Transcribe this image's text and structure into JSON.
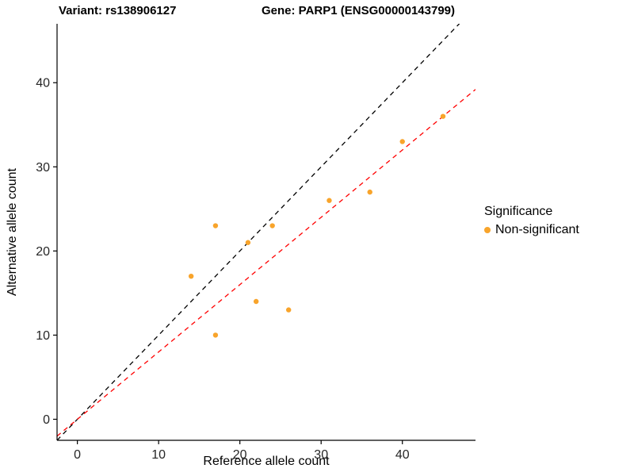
{
  "header": {
    "title_left": "Variant: rs138906127",
    "title_right": "Gene: PARP1 (ENSG00000143799)"
  },
  "legend": {
    "title": "Significance",
    "items": [
      {
        "label": "Non-significant",
        "color": "#F8A42B"
      }
    ]
  },
  "chart_data": {
    "type": "scatter",
    "title": "Variant: rs138906127 / Gene: PARP1 (ENSG00000143799)",
    "xlabel": "Reference allele count",
    "ylabel": "Alternative allele count",
    "xlim": [
      -2.5,
      49
    ],
    "ylim": [
      -2.5,
      47
    ],
    "xticks": [
      0,
      10,
      20,
      30,
      40
    ],
    "yticks": [
      0,
      10,
      20,
      30,
      40
    ],
    "grid": false,
    "legend_position": "right",
    "series": [
      {
        "name": "Non-significant",
        "color": "#F8A42B",
        "points": [
          [
            14,
            17
          ],
          [
            17,
            10
          ],
          [
            17,
            23
          ],
          [
            21,
            21
          ],
          [
            22,
            14
          ],
          [
            24,
            23
          ],
          [
            26,
            13
          ],
          [
            31,
            26
          ],
          [
            36,
            27
          ],
          [
            40,
            33
          ],
          [
            45,
            36
          ]
        ]
      }
    ],
    "reference_lines": [
      {
        "name": "identity",
        "style": "dashed",
        "color": "#000000",
        "slope": 1,
        "intercept": 0
      },
      {
        "name": "regression",
        "style": "dashed",
        "color": "#FF0000",
        "slope": 0.8,
        "intercept": 0
      }
    ]
  }
}
